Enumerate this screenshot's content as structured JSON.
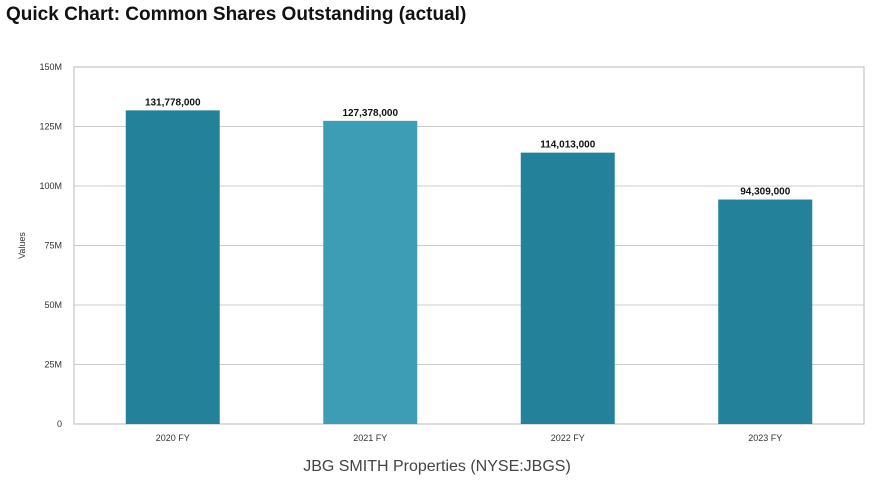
{
  "page": {
    "title": "Quick Chart: Common Shares Outstanding (actual)",
    "subtitle": "JBG SMITH Properties (NYSE:JBGS)"
  },
  "chart_data": {
    "type": "bar",
    "categories": [
      "2020 FY",
      "2021 FY",
      "2022 FY",
      "2023 FY"
    ],
    "values": [
      131778000,
      127378000,
      114013000,
      94309000
    ],
    "data_labels": [
      "131,778,000",
      "127,378,000",
      "114,013,000",
      "94,309,000"
    ],
    "ylabel": "Values",
    "ylim": [
      0,
      150000000
    ],
    "yticks": [
      0,
      25000000,
      50000000,
      75000000,
      100000000,
      125000000,
      150000000
    ],
    "ytick_labels": [
      "0",
      "25M",
      "50M",
      "75M",
      "100M",
      "125M",
      "150M"
    ],
    "grid": true,
    "colors": {
      "bar": "#23829a",
      "bar_highlight": "#3d9db5",
      "grid": "#cccccc",
      "frame": "#bbbbbb"
    },
    "highlight_index": 1
  }
}
